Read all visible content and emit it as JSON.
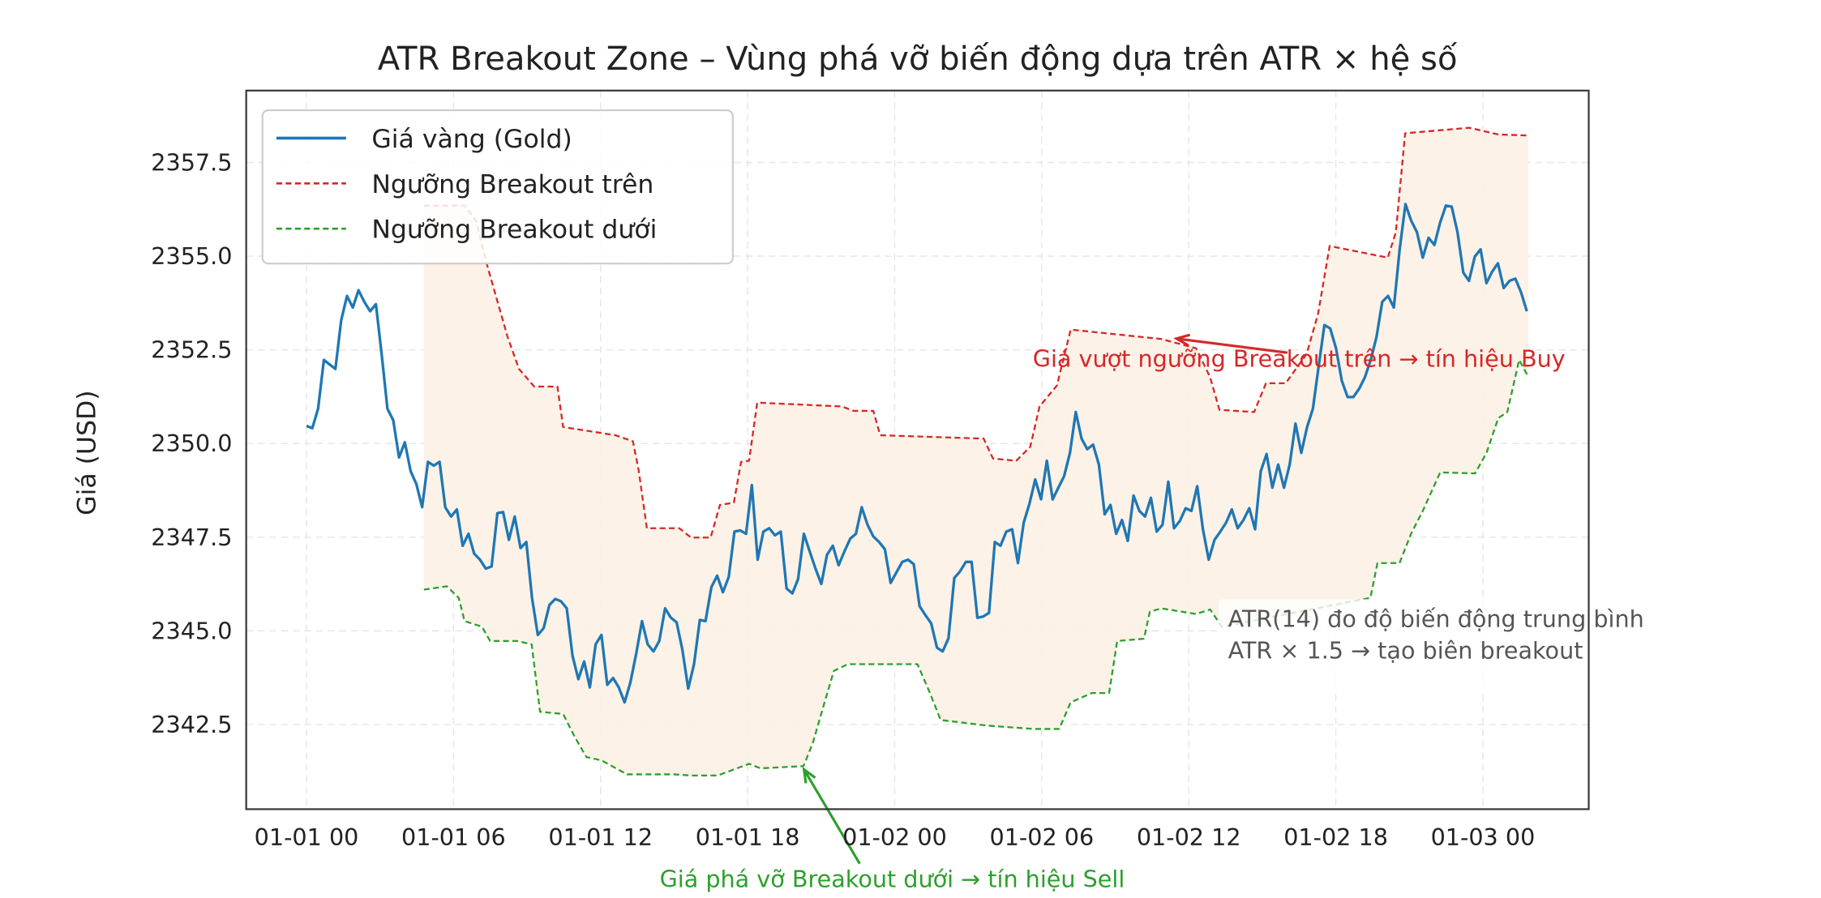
{
  "chart_data": {
    "type": "line",
    "title": "ATR Breakout Zone – Vùng phá vỡ biến động dựa trên ATR × hệ số",
    "xlabel": "",
    "ylabel": "Giá (USD)",
    "xlim_hours": [
      -2.46,
      52.32
    ],
    "ylim": [
      2340.24,
      2359.42
    ],
    "grid": true,
    "legend_position": "upper-left",
    "x_ticks": [
      {
        "hours": 0,
        "label": "01-01 00"
      },
      {
        "hours": 6,
        "label": "01-01 06"
      },
      {
        "hours": 12,
        "label": "01-01 12"
      },
      {
        "hours": 18,
        "label": "01-01 18"
      },
      {
        "hours": 24,
        "label": "01-02 00"
      },
      {
        "hours": 30,
        "label": "01-02 06"
      },
      {
        "hours": 36,
        "label": "01-02 12"
      },
      {
        "hours": 42,
        "label": "01-02 18"
      },
      {
        "hours": 48,
        "label": "01-03 00"
      }
    ],
    "y_ticks": [
      {
        "value": 2342.5,
        "label": "2342.5"
      },
      {
        "value": 2345.0,
        "label": "2345.0"
      },
      {
        "value": 2347.5,
        "label": "2347.5"
      },
      {
        "value": 2350.0,
        "label": "2350.0"
      },
      {
        "value": 2352.5,
        "label": "2352.5"
      },
      {
        "value": 2355.0,
        "label": "2355.0"
      },
      {
        "value": 2357.5,
        "label": "2357.5"
      }
    ],
    "series": [
      {
        "name": "Giá vàng (Gold)",
        "color": "#1f77b4",
        "style": "solid",
        "start_hours": 0,
        "step_hours": 0.236,
        "values": [
          2350.47,
          2350.41,
          2350.93,
          2352.23,
          2352.11,
          2351.99,
          2353.29,
          2353.94,
          2353.63,
          2354.09,
          2353.78,
          2353.53,
          2353.72,
          2352.36,
          2350.93,
          2350.62,
          2349.63,
          2350.03,
          2349.26,
          2348.92,
          2348.3,
          2349.51,
          2349.41,
          2349.51,
          2348.3,
          2348.05,
          2348.24,
          2347.27,
          2347.59,
          2347.06,
          2346.9,
          2346.66,
          2346.72,
          2348.14,
          2348.17,
          2347.43,
          2348.05,
          2347.21,
          2347.37,
          2345.88,
          2344.89,
          2345.07,
          2345.69,
          2345.85,
          2345.79,
          2345.6,
          2344.33,
          2343.71,
          2344.18,
          2343.49,
          2344.64,
          2344.89,
          2343.56,
          2343.74,
          2343.49,
          2343.09,
          2343.62,
          2344.39,
          2345.26,
          2344.64,
          2344.45,
          2344.73,
          2345.6,
          2345.35,
          2345.23,
          2344.49,
          2343.46,
          2344.11,
          2345.29,
          2345.26,
          2346.16,
          2346.47,
          2346.03,
          2346.44,
          2347.65,
          2347.68,
          2347.59,
          2348.89,
          2346.9,
          2347.65,
          2347.74,
          2347.55,
          2347.65,
          2346.13,
          2346.0,
          2346.38,
          2347.59,
          2347.12,
          2346.66,
          2346.25,
          2347.03,
          2347.27,
          2346.75,
          2347.12,
          2347.46,
          2347.59,
          2348.3,
          2347.83,
          2347.52,
          2347.37,
          2347.18,
          2346.28,
          2346.56,
          2346.84,
          2346.9,
          2346.78,
          2345.66,
          2345.42,
          2345.2,
          2344.55,
          2344.45,
          2344.8,
          2346.41,
          2346.59,
          2346.84,
          2346.84,
          2345.35,
          2345.38,
          2345.48,
          2347.37,
          2347.27,
          2347.65,
          2347.71,
          2346.81,
          2347.89,
          2348.39,
          2349.04,
          2348.51,
          2349.54,
          2348.51,
          2348.82,
          2349.13,
          2349.75,
          2350.84,
          2350.13,
          2349.85,
          2349.97,
          2349.44,
          2348.11,
          2348.36,
          2347.59,
          2347.96,
          2347.4,
          2348.61,
          2348.2,
          2348.05,
          2348.55,
          2347.65,
          2347.83,
          2348.98,
          2347.74,
          2347.93,
          2348.27,
          2348.2,
          2348.86,
          2347.71,
          2346.9,
          2347.43,
          2347.65,
          2347.89,
          2348.24,
          2347.74,
          2347.96,
          2348.27,
          2347.71,
          2349.26,
          2349.72,
          2348.82,
          2349.44,
          2348.82,
          2349.44,
          2350.53,
          2349.75,
          2350.44,
          2350.93,
          2352.05,
          2353.16,
          2353.07,
          2352.54,
          2351.67,
          2351.24,
          2351.24,
          2351.46,
          2351.77,
          2352.23,
          2352.85,
          2353.78,
          2353.94,
          2353.63,
          2355.18,
          2356.39,
          2355.95,
          2355.64,
          2354.96,
          2355.49,
          2355.3,
          2355.89,
          2356.35,
          2356.32,
          2355.64,
          2354.56,
          2354.34,
          2354.99,
          2355.18,
          2354.28,
          2354.59,
          2354.81,
          2354.15,
          2354.34,
          2354.4,
          2354.03,
          2353.53
        ]
      },
      {
        "name": "Ngưỡng Breakout trên",
        "color": "#d62728",
        "style": "dashed",
        "points": [
          [
            4.79,
            2356.35
          ],
          [
            6.45,
            2356.35
          ],
          [
            6.92,
            2355.95
          ],
          [
            7.39,
            2354.71
          ],
          [
            8.2,
            2352.85
          ],
          [
            8.67,
            2351.99
          ],
          [
            9.29,
            2351.52
          ],
          [
            10.24,
            2351.52
          ],
          [
            10.47,
            2350.44
          ],
          [
            12.61,
            2350.22
          ],
          [
            13.32,
            2350.06
          ],
          [
            13.55,
            2349.29
          ],
          [
            13.89,
            2347.74
          ],
          [
            15.21,
            2347.74
          ],
          [
            15.69,
            2347.49
          ],
          [
            16.49,
            2347.49
          ],
          [
            16.87,
            2348.36
          ],
          [
            17.44,
            2348.42
          ],
          [
            17.73,
            2349.51
          ],
          [
            18.06,
            2349.54
          ],
          [
            18.39,
            2351.09
          ],
          [
            21.85,
            2350.99
          ],
          [
            22.32,
            2350.87
          ],
          [
            23.13,
            2350.87
          ],
          [
            23.41,
            2350.22
          ],
          [
            27.63,
            2350.13
          ],
          [
            28.01,
            2349.6
          ],
          [
            28.96,
            2349.54
          ],
          [
            29.53,
            2349.91
          ],
          [
            29.91,
            2350.99
          ],
          [
            30.62,
            2351.55
          ],
          [
            31.18,
            2353.04
          ],
          [
            34.88,
            2352.79
          ],
          [
            36.3,
            2352.54
          ],
          [
            36.87,
            2351.77
          ],
          [
            37.25,
            2350.9
          ],
          [
            38.67,
            2350.84
          ],
          [
            39.15,
            2351.61
          ],
          [
            39.95,
            2351.61
          ],
          [
            40.81,
            2352.39
          ],
          [
            41.28,
            2353.47
          ],
          [
            41.75,
            2355.27
          ],
          [
            44.12,
            2354.96
          ],
          [
            44.45,
            2355.64
          ],
          [
            44.83,
            2358.28
          ],
          [
            47.44,
            2358.43
          ],
          [
            48.63,
            2358.25
          ],
          [
            49.86,
            2358.22
          ]
        ]
      },
      {
        "name": "Ngưỡng Breakout dưới",
        "color": "#2ca02c",
        "style": "dashed",
        "points": [
          [
            4.79,
            2346.1
          ],
          [
            5.73,
            2346.19
          ],
          [
            6.21,
            2345.88
          ],
          [
            6.45,
            2345.26
          ],
          [
            7.16,
            2345.11
          ],
          [
            7.49,
            2344.73
          ],
          [
            8.58,
            2344.73
          ],
          [
            9.19,
            2344.64
          ],
          [
            9.53,
            2342.84
          ],
          [
            10.47,
            2342.78
          ],
          [
            10.95,
            2342.16
          ],
          [
            11.42,
            2341.63
          ],
          [
            12.04,
            2341.54
          ],
          [
            13.08,
            2341.17
          ],
          [
            14.98,
            2341.17
          ],
          [
            15.69,
            2341.14
          ],
          [
            16.78,
            2341.14
          ],
          [
            18.06,
            2341.45
          ],
          [
            18.53,
            2341.33
          ],
          [
            20.28,
            2341.39
          ],
          [
            20.66,
            2342.01
          ],
          [
            21.14,
            2343.09
          ],
          [
            21.52,
            2343.93
          ],
          [
            22.09,
            2344.11
          ],
          [
            24.93,
            2344.11
          ],
          [
            25.4,
            2343.4
          ],
          [
            25.88,
            2342.62
          ],
          [
            27.77,
            2342.47
          ],
          [
            29.67,
            2342.38
          ],
          [
            30.71,
            2342.38
          ],
          [
            31.18,
            2343.09
          ],
          [
            32.04,
            2343.34
          ],
          [
            32.75,
            2343.34
          ],
          [
            33.08,
            2344.73
          ],
          [
            34.17,
            2344.79
          ],
          [
            34.41,
            2345.51
          ],
          [
            34.88,
            2345.6
          ],
          [
            36.3,
            2345.45
          ],
          [
            36.87,
            2345.57
          ],
          [
            37.35,
            2345.11
          ],
          [
            43.41,
            2345.88
          ],
          [
            43.7,
            2346.81
          ],
          [
            44.6,
            2346.81
          ],
          [
            45.07,
            2347.59
          ],
          [
            45.55,
            2348.2
          ],
          [
            46.26,
            2349.23
          ],
          [
            47.68,
            2349.2
          ],
          [
            48.15,
            2349.75
          ],
          [
            48.63,
            2350.68
          ],
          [
            49.0,
            2350.84
          ],
          [
            49.48,
            2352.23
          ],
          [
            49.86,
            2351.77
          ]
        ]
      }
    ],
    "zone_fill_color": "#fdf1e4",
    "annotations": [
      {
        "text": "Giá vượt ngưỡng Breakout trên → tín hiệu Buy",
        "color": "#d62728",
        "text_at": [
          40.5,
          2352.3
        ],
        "arrow_to": [
          35.5,
          2352.8
        ]
      },
      {
        "text": "Giá phá vỡ Breakout dưới → tín hiệu Sell",
        "color": "#2ca02c",
        "text_at": [
          23.9,
          2339.5
        ],
        "arrow_to": [
          20.3,
          2341.3
        ]
      },
      {
        "lines": [
          "ATR(14) đo độ biến động trung bình",
          "ATR × 1.5 → tạo biên breakout"
        ],
        "color": "#555555",
        "text_at": [
          37.6,
          2345.1
        ]
      }
    ]
  }
}
